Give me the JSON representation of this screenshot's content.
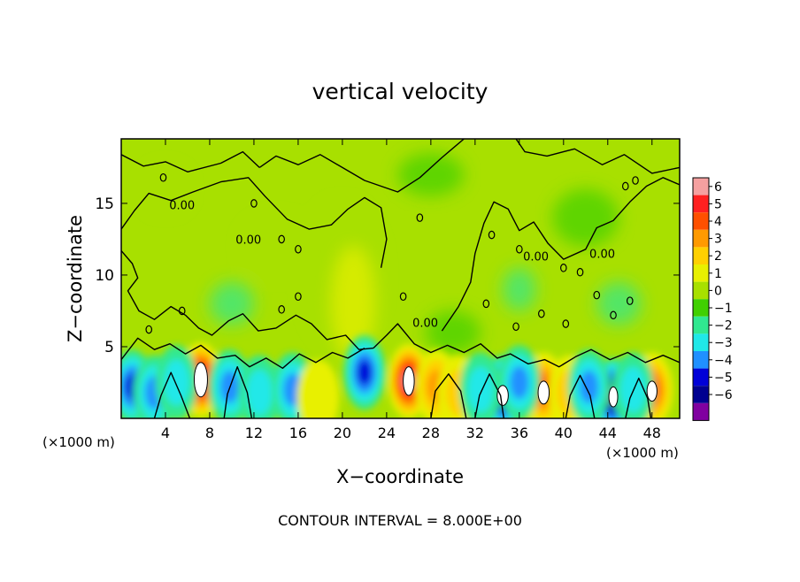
{
  "chart_data": {
    "type": "heatmap",
    "title": "vertical velocity",
    "xlabel": "X−coordinate",
    "ylabel": "Z−coordinate",
    "x_unit_left": "(×1000 m)",
    "x_unit_right": "(×1000 m)",
    "xlim": [
      0,
      50.5
    ],
    "ylim": [
      0,
      19.5
    ],
    "x_ticks": [
      4,
      8,
      12,
      16,
      20,
      24,
      28,
      32,
      36,
      40,
      44,
      48
    ],
    "y_ticks": [
      5,
      10,
      15
    ],
    "x_tick_labels": [
      "4",
      "8",
      "12",
      "16",
      "20",
      "24",
      "28",
      "32",
      "36",
      "40",
      "44",
      "48"
    ],
    "y_tick_labels": [
      "5",
      "10",
      "15"
    ],
    "contour_label": "0.00",
    "contour_interval_text": "CONTOUR INTERVAL = 8.000E+00",
    "colorbar": {
      "min": -6,
      "max": 6,
      "tick_labels": [
        "6",
        "5",
        "4",
        "3",
        "2",
        "1",
        "0",
        "−1",
        "−2",
        "−3",
        "−4",
        "−5",
        "−6"
      ],
      "colors": [
        "#f5a0a0",
        "#ff2020",
        "#ff5000",
        "#ff9a00",
        "#ffd000",
        "#e8f000",
        "#a8e000",
        "#40d000",
        "#30e890",
        "#20e8e8",
        "#2090ff",
        "#0000d8",
        "#000090",
        "#8000a0"
      ]
    },
    "updrafts": [
      {
        "x": 7.2,
        "z": 2.7,
        "peak": 6
      },
      {
        "x": 26.0,
        "z": 2.6,
        "peak": 6
      },
      {
        "x": 38.2,
        "z": 2.0,
        "peak": 4
      },
      {
        "x": 48.0,
        "z": 2.0,
        "peak": 4
      }
    ],
    "downdrafts": [
      {
        "x": 1.0,
        "z": 2.2,
        "peak": -4
      },
      {
        "x": 22.0,
        "z": 3.2,
        "peak": -4
      },
      {
        "x": 34.5,
        "z": 1.8,
        "peak": -6
      },
      {
        "x": 44.5,
        "z": 1.6,
        "peak": -6
      }
    ]
  }
}
